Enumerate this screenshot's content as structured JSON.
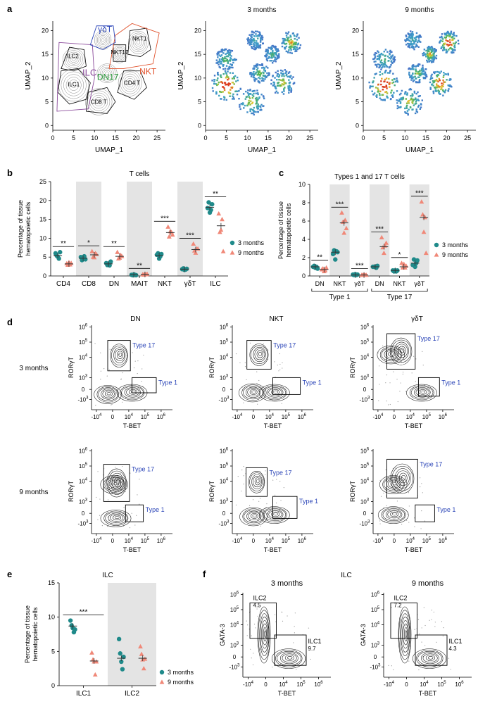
{
  "colors": {
    "teal": "#1f8a8a",
    "salmon": "#f08878",
    "shade": "#e4e4e4",
    "blue": "#2c46b8",
    "purple": "#8a4a9a",
    "green": "#2a9a3a",
    "orange": "#e0502a",
    "axis": "#000000"
  },
  "panel_labels": {
    "a": "a",
    "b": "b",
    "c": "c",
    "d": "d",
    "e": "e",
    "f": "f"
  },
  "panel_a": {
    "xlabel": "UMAP_1",
    "ylabel": "UMAP_2",
    "xticks": [
      "0",
      "5",
      "10",
      "15",
      "20",
      "25"
    ],
    "yticks": [
      "0",
      "5",
      "10",
      "15",
      "20"
    ],
    "titles": [
      "",
      "3 months",
      "9 months"
    ],
    "cluster_labels": {
      "ilc2": "ILC2",
      "ilc1": "ILC1",
      "cd8t": "CD8 T",
      "cd4t": "CD4 T",
      "nkt1": "NKT1",
      "nkt17": "NKT17",
      "ilc": "ILC",
      "dn17": "DN17",
      "nkt": "NKT",
      "gdt": "γδT"
    }
  },
  "chart_data": [
    {
      "id": "b",
      "type": "scatter",
      "title": "T cells",
      "ylabel": "Percentage of tissue hematopoietic cells",
      "ylabel_lines": [
        "Percentage of tissue",
        "hematopoietic cells"
      ],
      "ylim": [
        0,
        25
      ],
      "yticks": [
        "0",
        "5",
        "10",
        "15",
        "20",
        "25"
      ],
      "categories": [
        "CD4",
        "CD8",
        "DN",
        "MAIT",
        "NKT",
        "γδT",
        "ILC"
      ],
      "significance": [
        "**",
        "*",
        "**",
        "**",
        "***",
        "***",
        "**"
      ],
      "shaded": [
        false,
        true,
        false,
        true,
        false,
        true,
        false
      ],
      "legend": [
        "3 months",
        "9 months"
      ],
      "series": [
        {
          "name": "3 months",
          "means": [
            5.4,
            4.7,
            3.2,
            0.3,
            5.4,
            1.8,
            18.2
          ],
          "points": [
            [
              6.0,
              5.4,
              5.1,
              4.6,
              6.3
            ],
            [
              5.0,
              4.2,
              4.6,
              5.2,
              4.4
            ],
            [
              3.4,
              2.9,
              3.1,
              2.8,
              3.8
            ],
            [
              0.3,
              0.2,
              0.4,
              0.3,
              0.2
            ],
            [
              5.6,
              6.0,
              4.6,
              5.2,
              5.8
            ],
            [
              1.8,
              2.0,
              1.6,
              1.7,
              1.9
            ],
            [
              18.0,
              19.5,
              16.8,
              17.5,
              19.0
            ]
          ]
        },
        {
          "name": "9 months",
          "means": [
            3.2,
            5.6,
            5.2,
            0.4,
            11.5,
            7.0,
            13.3
          ],
          "points": [
            [
              3.3,
              2.9,
              3.6,
              3.0,
              3.4
            ],
            [
              6.5,
              5.0,
              4.9,
              6.0,
              5.7
            ],
            [
              6.3,
              4.6,
              4.8,
              5.5,
              5.2
            ],
            [
              0.4,
              0.3,
              0.5,
              0.4,
              0.5
            ],
            [
              13.0,
              10.4,
              11.8,
              11.6,
              10.9
            ],
            [
              8.5,
              6.7,
              6.1,
              7.2,
              7.2
            ],
            [
              16.5,
              11.6,
              12.2,
              15.0,
              6.5
            ]
          ]
        }
      ]
    },
    {
      "id": "c",
      "type": "scatter",
      "title": "Types 1 and 17 T cells",
      "ylabel": "Percentage of tissue hematopoietic cells",
      "ylabel_lines": [
        "Percentage of tissue",
        "hematopoietic cells"
      ],
      "ylim": [
        0,
        10
      ],
      "yticks": [
        "0",
        "2",
        "4",
        "6",
        "8",
        "10"
      ],
      "categories": [
        "DN",
        "NKT",
        "γδT",
        "DN",
        "NKT",
        "γδT"
      ],
      "groups": [
        "Type 1",
        "Type 17"
      ],
      "significance": [
        "**",
        "***",
        "***",
        "***",
        "*",
        "***"
      ],
      "shaded": [
        false,
        true,
        false,
        true,
        false,
        true
      ],
      "legend": [
        "3 months",
        "9 months"
      ],
      "series": [
        {
          "name": "3 months",
          "means": [
            1.0,
            2.6,
            0.1,
            1.0,
            0.6,
            1.4
          ],
          "points": [
            [
              1.0,
              1.1,
              0.9,
              1.0,
              0.8
            ],
            [
              2.4,
              2.8,
              1.8,
              2.7,
              2.6
            ],
            [
              0.15,
              0.1,
              0.2,
              0.1,
              0.15
            ],
            [
              1.0,
              1.0,
              1.0,
              0.9,
              1.1
            ],
            [
              0.6,
              0.5,
              0.6,
              0.5,
              0.6
            ],
            [
              1.2,
              1.8,
              1.0,
              1.4,
              1.7
            ]
          ]
        },
        {
          "name": "9 months",
          "means": [
            0.7,
            5.8,
            0.1,
            3.2,
            1.0,
            6.4
          ],
          "points": [
            [
              0.7,
              0.8,
              0.5,
              0.6,
              0.9
            ],
            [
              6.9,
              5.9,
              4.7,
              6.1,
              5.2
            ],
            [
              0.1,
              0.1,
              0.15,
              0.1,
              0.1
            ],
            [
              4.2,
              3.1,
              2.5,
              3.3,
              3.6
            ],
            [
              1.4,
              0.9,
              1.3,
              0.9,
              1.1
            ],
            [
              8.1,
              6.7,
              4.8,
              6.4,
              2.5
            ]
          ]
        }
      ]
    },
    {
      "id": "e",
      "type": "scatter",
      "title": "ILC",
      "ylabel": "Percentage of tissue hematopoietic cells",
      "ylabel_lines": [
        "Percentage of tissue",
        "hematopoietic cells"
      ],
      "ylim": [
        0,
        15
      ],
      "yticks": [
        "0",
        "5",
        "10",
        "15"
      ],
      "categories": [
        "ILC1",
        "ILC2"
      ],
      "significance": [
        "***",
        ""
      ],
      "shaded": [
        false,
        true
      ],
      "legend": [
        "3 months",
        "9 months"
      ],
      "series": [
        {
          "name": "3 months",
          "means": [
            8.7,
            4.0
          ],
          "points": [
            [
              9.5,
              8.8,
              8.4,
              7.8,
              8.2
            ],
            [
              6.8,
              4.7,
              3.5,
              2.4,
              4.2
            ]
          ]
        },
        {
          "name": "9 months",
          "means": [
            3.6,
            4.0
          ],
          "points": [
            [
              4.8,
              3.8,
              3.5,
              1.6,
              3.5
            ],
            [
              5.7,
              4.6,
              3.8,
              2.5,
              3.9
            ]
          ]
        }
      ]
    }
  ],
  "panel_d": {
    "columns": [
      "DN",
      "NKT",
      "γδT"
    ],
    "rows": [
      "3 months",
      "9 months"
    ],
    "xlabel": "T-BET",
    "ylabel": "RORγT",
    "gate_type17": "Type 17",
    "gate_type1": "Type 1",
    "xtick_labels": [
      "-10^4",
      "0",
      "10^4",
      "10^5",
      "10^6"
    ],
    "ytick_labels": [
      "10^6",
      "10^5",
      "10^4",
      "10^3",
      "0",
      "-10^3"
    ]
  },
  "panel_f": {
    "title": "ILC",
    "columns": [
      "3 months",
      "9 months"
    ],
    "xlabel": "T-BET",
    "ylabel": "GATA-3",
    "gates": [
      {
        "ilc2": "ILC2",
        "ilc2_pct": "4.5",
        "ilc1": "ILC1",
        "ilc1_pct": "9.7"
      },
      {
        "ilc2": "ILC2",
        "ilc2_pct": "7.2",
        "ilc1": "ILC1",
        "ilc1_pct": "4.3"
      }
    ]
  }
}
